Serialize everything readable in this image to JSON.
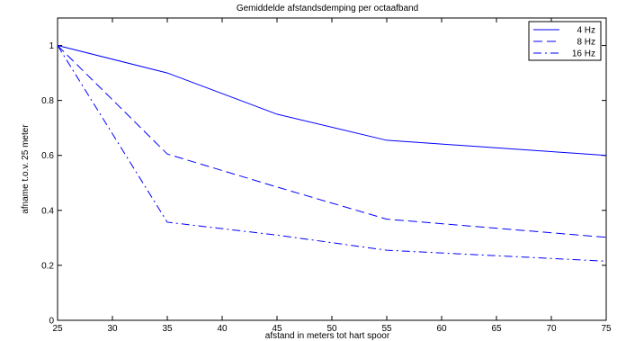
{
  "chart_data": {
    "type": "line",
    "title": "Gemiddelde afstandsdemping per octaafband",
    "xlabel": "afstand in meters tot hart spoor",
    "ylabel": "afname t.o.v. 25 meter",
    "x": [
      25,
      35,
      45,
      55,
      75
    ],
    "xlim": [
      25,
      75
    ],
    "ylim": [
      0,
      1.1
    ],
    "xticks": [
      "25",
      "30",
      "35",
      "40",
      "45",
      "50",
      "55",
      "60",
      "65",
      "70",
      "75"
    ],
    "yticks": [
      "0",
      "0.2",
      "0.4",
      "0.6",
      "0.8",
      "1"
    ],
    "grid": false,
    "legend_position": "top-right",
    "series": [
      {
        "name": "4 Hz",
        "values": [
          1.0,
          0.9,
          0.75,
          0.655,
          0.6
        ],
        "color": "#0000ff",
        "dash": "solid"
      },
      {
        "name": "8 Hz",
        "values": [
          1.0,
          0.605,
          0.485,
          0.368,
          0.302
        ],
        "color": "#0000ff",
        "dash": "dashed"
      },
      {
        "name": "16 Hz",
        "values": [
          1.0,
          0.357,
          0.31,
          0.255,
          0.215
        ],
        "color": "#0000ff",
        "dash": "dashdot"
      }
    ]
  }
}
